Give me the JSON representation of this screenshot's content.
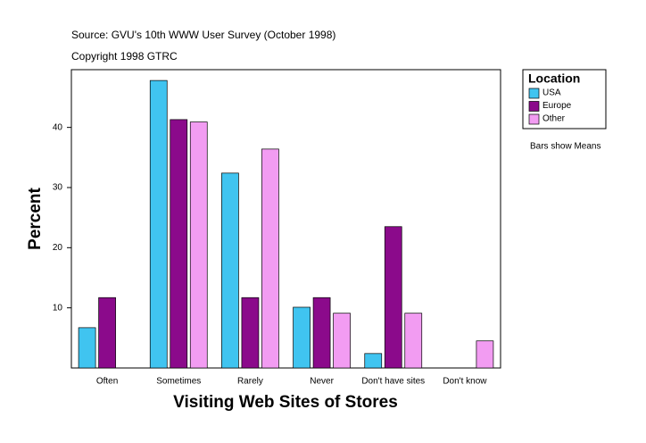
{
  "chart_data": {
    "type": "bar",
    "title": "Source: GVU's 10th WWW User Survey (October 1998)",
    "subtitle": "Copyright 1998 GTRC",
    "x_label": "Visiting Web Sites of Stores",
    "y_label": "Percent",
    "legend_title": "Location",
    "annotation": "Bars show Means",
    "categories": [
      "Often",
      "Sometimes",
      "Rarely",
      "Never",
      "Don't have sites",
      "Don't know"
    ],
    "series": [
      {
        "name": "USA",
        "color": "#40c4f0",
        "values": [
          6.7,
          47.8,
          32.4,
          10.1,
          2.4,
          null
        ]
      },
      {
        "name": "Europe",
        "color": "#8b0a8b",
        "values": [
          11.7,
          41.3,
          11.7,
          11.7,
          23.5,
          null
        ]
      },
      {
        "name": "Other",
        "color": "#f29cf2",
        "values": [
          null,
          40.9,
          36.4,
          9.1,
          9.1,
          4.5
        ]
      }
    ],
    "ylim": [
      0,
      49.6
    ],
    "yticks": [
      10,
      20,
      30,
      40
    ],
    "grid": false,
    "legend_position": "right"
  }
}
